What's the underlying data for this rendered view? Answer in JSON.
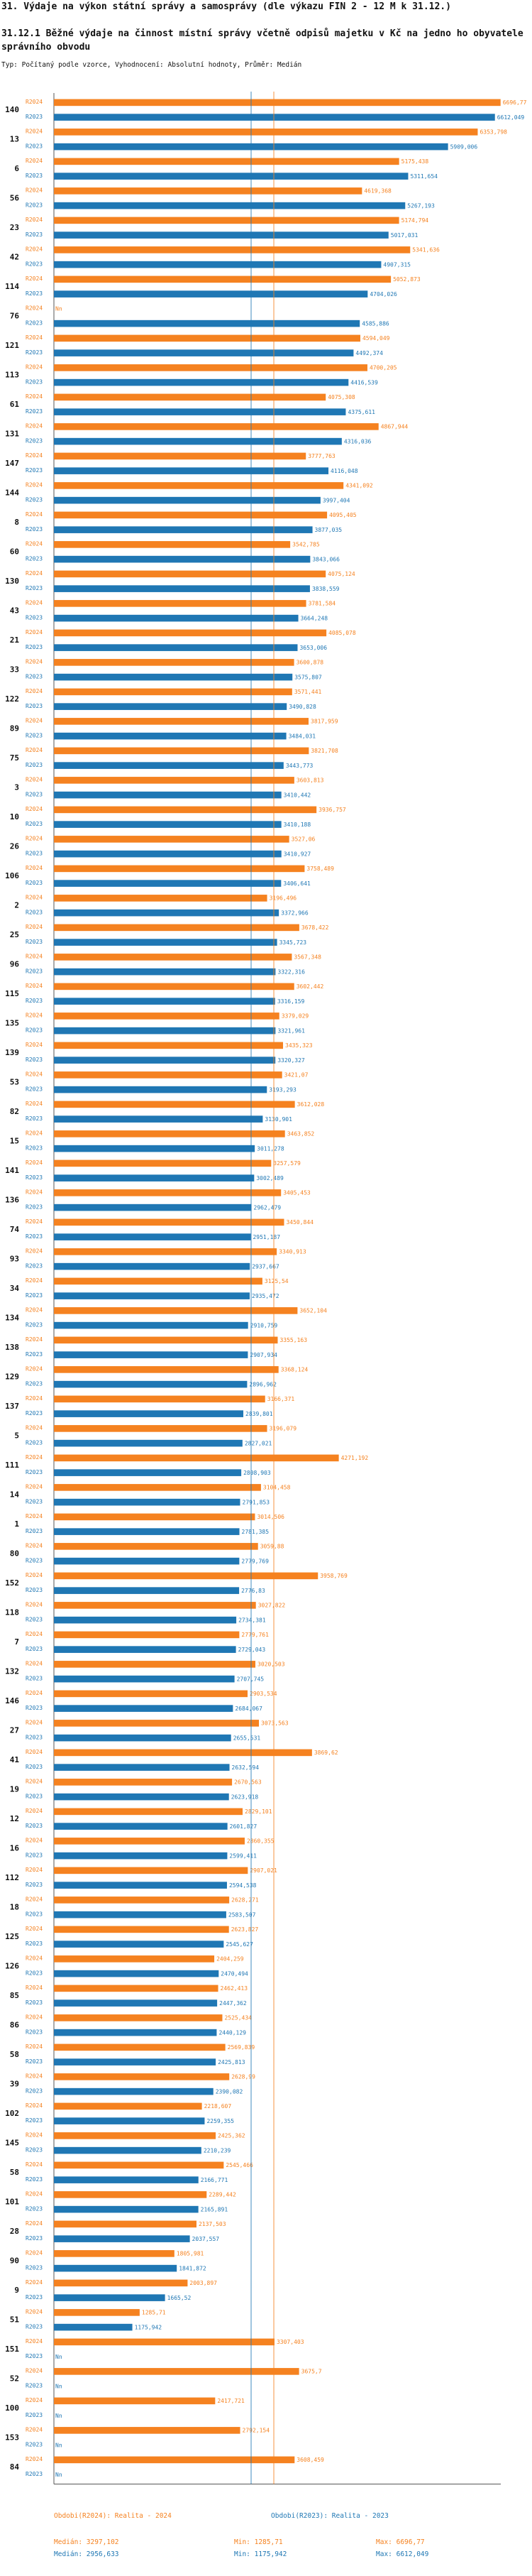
{
  "header": {
    "title": "31. Výdaje na výkon státní správy a samosprávy (dle výkazu FIN 2 - 12 M k 31.12.)",
    "subtitle": "31.12.1 Běžné výdaje na činnost místní správy včetně odpisů majetku v Kč na jedno ho obyvatele správního obvodu",
    "meta": "Typ: Počítaný podle vzorce, Vyhodnocení: Absolutní hodnoty, Průměr: Medián"
  },
  "chart_data": {
    "type": "bar",
    "orientation": "horizontal",
    "series": [
      {
        "name": "R2024",
        "color": "#f58220",
        "legend": "Obdobi(R2024): Realita - 2024"
      },
      {
        "name": "R2023",
        "color": "#1f77b4",
        "legend": "Obdobi(R2023): Realita - 2023"
      }
    ],
    "categories": [
      {
        "id": "140",
        "r2024": 6696.77,
        "r2024_label": "6696,77",
        "r2023": 6612.049,
        "r2023_label": "6612,049"
      },
      {
        "id": "13",
        "r2024": 6353.798,
        "r2024_label": "6353,798",
        "r2023": 5909.006,
        "r2023_label": "5909,006"
      },
      {
        "id": "6",
        "r2024": 5175.438,
        "r2024_label": "5175,438",
        "r2023": 5311.654,
        "r2023_label": "5311,654"
      },
      {
        "id": "56",
        "r2024": 4619.368,
        "r2024_label": "4619,368",
        "r2023": 5267.193,
        "r2023_label": "5267,193"
      },
      {
        "id": "23",
        "r2024": 5174.794,
        "r2024_label": "5174,794",
        "r2023": 5017.031,
        "r2023_label": "5017,031"
      },
      {
        "id": "42",
        "r2024": 5341.636,
        "r2024_label": "5341,636",
        "r2023": 4907.315,
        "r2023_label": "4907,315"
      },
      {
        "id": "114",
        "r2024": 5052.873,
        "r2024_label": "5052,873",
        "r2023": 4704.026,
        "r2023_label": "4704,026"
      },
      {
        "id": "76",
        "r2024": null,
        "r2024_label": "Nn",
        "r2023": 4585.886,
        "r2023_label": "4585,886"
      },
      {
        "id": "121",
        "r2024": 4594.049,
        "r2024_label": "4594,049",
        "r2023": 4492.374,
        "r2023_label": "4492,374"
      },
      {
        "id": "113",
        "r2024": 4700.205,
        "r2024_label": "4700,205",
        "r2023": 4416.539,
        "r2023_label": "4416,539"
      },
      {
        "id": "61",
        "r2024": 4075.308,
        "r2024_label": "4075,308",
        "r2023": 4375.611,
        "r2023_label": "4375,611"
      },
      {
        "id": "131",
        "r2024": 4867.944,
        "r2024_label": "4867,944",
        "r2023": 4316.036,
        "r2023_label": "4316,036"
      },
      {
        "id": "147",
        "r2024": 3777.763,
        "r2024_label": "3777,763",
        "r2023": 4116.048,
        "r2023_label": "4116,048"
      },
      {
        "id": "144",
        "r2024": 4341.092,
        "r2024_label": "4341,092",
        "r2023": 3997.404,
        "r2023_label": "3997,404"
      },
      {
        "id": "8",
        "r2024": 4095.405,
        "r2024_label": "4095,405",
        "r2023": 3877.035,
        "r2023_label": "3877,035"
      },
      {
        "id": "60",
        "r2024": 3542.785,
        "r2024_label": "3542,785",
        "r2023": 3843.066,
        "r2023_label": "3843,066"
      },
      {
        "id": "130",
        "r2024": 4075.124,
        "r2024_label": "4075,124",
        "r2023": 3838.559,
        "r2023_label": "3838,559"
      },
      {
        "id": "43",
        "r2024": 3781.584,
        "r2024_label": "3781,584",
        "r2023": 3664.248,
        "r2023_label": "3664,248"
      },
      {
        "id": "21",
        "r2024": 4085.078,
        "r2024_label": "4085,078",
        "r2023": 3653.006,
        "r2023_label": "3653,006"
      },
      {
        "id": "33",
        "r2024": 3600.878,
        "r2024_label": "3600,878",
        "r2023": 3575.807,
        "r2023_label": "3575,807"
      },
      {
        "id": "122",
        "r2024": 3571.441,
        "r2024_label": "3571,441",
        "r2023": 3490.828,
        "r2023_label": "3490,828"
      },
      {
        "id": "89",
        "r2024": 3817.959,
        "r2024_label": "3817,959",
        "r2023": 3484.031,
        "r2023_label": "3484,031"
      },
      {
        "id": "75",
        "r2024": 3821.708,
        "r2024_label": "3821,708",
        "r2023": 3443.773,
        "r2023_label": "3443,773"
      },
      {
        "id": "3",
        "r2024": 3603.813,
        "r2024_label": "3603,813",
        "r2023": 3410.442,
        "r2023_label": "3410,442"
      },
      {
        "id": "10",
        "r2024": 3936.757,
        "r2024_label": "3936,757",
        "r2023": 3410.188,
        "r2023_label": "3410,188"
      },
      {
        "id": "26",
        "r2024": 3527.06,
        "r2024_label": "3527,06",
        "r2023": 3410.927,
        "r2023_label": "3410,927"
      },
      {
        "id": "106",
        "r2024": 3758.489,
        "r2024_label": "3758,489",
        "r2023": 3406.641,
        "r2023_label": "3406,641"
      },
      {
        "id": "2",
        "r2024": 3196.496,
        "r2024_label": "3196,496",
        "r2023": 3372.966,
        "r2023_label": "3372,966"
      },
      {
        "id": "25",
        "r2024": 3678.422,
        "r2024_label": "3678,422",
        "r2023": 3345.723,
        "r2023_label": "3345,723"
      },
      {
        "id": "96",
        "r2024": 3567.348,
        "r2024_label": "3567,348",
        "r2023": 3322.316,
        "r2023_label": "3322,316"
      },
      {
        "id": "115",
        "r2024": 3602.442,
        "r2024_label": "3602,442",
        "r2023": 3316.159,
        "r2023_label": "3316,159"
      },
      {
        "id": "135",
        "r2024": 3379.029,
        "r2024_label": "3379,029",
        "r2023": 3321.961,
        "r2023_label": "3321,961"
      },
      {
        "id": "139",
        "r2024": 3435.323,
        "r2024_label": "3435,323",
        "r2023": 3320.327,
        "r2023_label": "3320,327"
      },
      {
        "id": "53",
        "r2024": 3421.07,
        "r2024_label": "3421,07",
        "r2023": 3193.293,
        "r2023_label": "3193,293"
      },
      {
        "id": "82",
        "r2024": 3612.028,
        "r2024_label": "3612,028",
        "r2023": 3130.901,
        "r2023_label": "3130,901"
      },
      {
        "id": "15",
        "r2024": 3463.852,
        "r2024_label": "3463,852",
        "r2023": 3011.278,
        "r2023_label": "3011,278"
      },
      {
        "id": "141",
        "r2024": 3257.579,
        "r2024_label": "3257,579",
        "r2023": 3002.489,
        "r2023_label": "3002,489"
      },
      {
        "id": "136",
        "r2024": 3405.453,
        "r2024_label": "3405,453",
        "r2023": 2962.479,
        "r2023_label": "2962,479"
      },
      {
        "id": "74",
        "r2024": 3450.844,
        "r2024_label": "3450,844",
        "r2023": 2951.187,
        "r2023_label": "2951,187"
      },
      {
        "id": "93",
        "r2024": 3340.913,
        "r2024_label": "3340,913",
        "r2023": 2937.667,
        "r2023_label": "2937,667"
      },
      {
        "id": "34",
        "r2024": 3125.54,
        "r2024_label": "3125,54",
        "r2023": 2935.472,
        "r2023_label": "2935,472"
      },
      {
        "id": "134",
        "r2024": 3652.104,
        "r2024_label": "3652,104",
        "r2023": 2910.759,
        "r2023_label": "2910,759"
      },
      {
        "id": "138",
        "r2024": 3355.163,
        "r2024_label": "3355,163",
        "r2023": 2907.934,
        "r2023_label": "2907,934"
      },
      {
        "id": "129",
        "r2024": 3368.124,
        "r2024_label": "3368,124",
        "r2023": 2896.962,
        "r2023_label": "2896,962"
      },
      {
        "id": "137",
        "r2024": 3166.371,
        "r2024_label": "3166,371",
        "r2023": 2839.801,
        "r2023_label": "2839,801"
      },
      {
        "id": "5",
        "r2024": 3196.079,
        "r2024_label": "3196,079",
        "r2023": 2827.021,
        "r2023_label": "2827,021"
      },
      {
        "id": "111",
        "r2024": 4271.192,
        "r2024_label": "4271,192",
        "r2023": 2808.903,
        "r2023_label": "2808,903"
      },
      {
        "id": "14",
        "r2024": 3104.458,
        "r2024_label": "3104,458",
        "r2023": 2791.853,
        "r2023_label": "2791,853"
      },
      {
        "id": "1",
        "r2024": 3014.506,
        "r2024_label": "3014,506",
        "r2023": 2781.385,
        "r2023_label": "2781,385"
      },
      {
        "id": "80",
        "r2024": 3059.88,
        "r2024_label": "3059,88",
        "r2023": 2779.769,
        "r2023_label": "2779,769"
      },
      {
        "id": "152",
        "r2024": 3958.769,
        "r2024_label": "3958,769",
        "r2023": 2776.83,
        "r2023_label": "2776,83"
      },
      {
        "id": "118",
        "r2024": 3027.822,
        "r2024_label": "3027,822",
        "r2023": 2734.381,
        "r2023_label": "2734,381"
      },
      {
        "id": "7",
        "r2024": 2779.761,
        "r2024_label": "2779,761",
        "r2023": 2729.043,
        "r2023_label": "2729,043"
      },
      {
        "id": "132",
        "r2024": 3020.503,
        "r2024_label": "3020,503",
        "r2023": 2707.745,
        "r2023_label": "2707,745"
      },
      {
        "id": "146",
        "r2024": 2903.534,
        "r2024_label": "2903,534",
        "r2023": 2684.067,
        "r2023_label": "2684,067"
      },
      {
        "id": "27",
        "r2024": 3073.563,
        "r2024_label": "3073,563",
        "r2023": 2655.531,
        "r2023_label": "2655,531"
      },
      {
        "id": "41",
        "r2024": 3869.62,
        "r2024_label": "3869,62",
        "r2023": 2632.594,
        "r2023_label": "2632,594"
      },
      {
        "id": "19",
        "r2024": 2670.563,
        "r2024_label": "2670,563",
        "r2023": 2623.918,
        "r2023_label": "2623,918"
      },
      {
        "id": "12",
        "r2024": 2829.101,
        "r2024_label": "2829,101",
        "r2023": 2601.827,
        "r2023_label": "2601,827"
      },
      {
        "id": "16",
        "r2024": 2860.355,
        "r2024_label": "2860,355",
        "r2023": 2599.411,
        "r2023_label": "2599,411"
      },
      {
        "id": "112",
        "r2024": 2907.021,
        "r2024_label": "2907,021",
        "r2023": 2594.538,
        "r2023_label": "2594,538"
      },
      {
        "id": "18",
        "r2024": 2628.271,
        "r2024_label": "2628,271",
        "r2023": 2583.507,
        "r2023_label": "2583,507"
      },
      {
        "id": "125",
        "r2024": 2623.827,
        "r2024_label": "2623,827",
        "r2023": 2545.627,
        "r2023_label": "2545,627"
      },
      {
        "id": "126",
        "r2024": 2404.259,
        "r2024_label": "2404,259",
        "r2023": 2470.494,
        "r2023_label": "2470,494"
      },
      {
        "id": "85",
        "r2024": 2462.413,
        "r2024_label": "2462,413",
        "r2023": 2447.362,
        "r2023_label": "2447,362"
      },
      {
        "id": "86",
        "r2024": 2525.434,
        "r2024_label": "2525,434",
        "r2023": 2440.129,
        "r2023_label": "2440,129"
      },
      {
        "id": "58",
        "r2024": 2569.839,
        "r2024_label": "2569,839",
        "r2023": 2425.813,
        "r2023_label": "2425,813"
      },
      {
        "id": "39",
        "r2024": 2628.99,
        "r2024_label": "2628,99",
        "r2023": 2390.082,
        "r2023_label": "2390,082"
      },
      {
        "id": "102",
        "r2024": 2218.607,
        "r2024_label": "2218,607",
        "r2023": 2259.355,
        "r2023_label": "2259,355"
      },
      {
        "id": "145",
        "r2024": 2425.362,
        "r2024_label": "2425,362",
        "r2023": 2210.239,
        "r2023_label": "2210,239"
      },
      {
        "id": "58",
        "r2024": 2545.466,
        "r2024_label": "2545,466",
        "r2023": 2166.771,
        "r2023_label": "2166,771"
      },
      {
        "id": "101",
        "r2024": 2289.442,
        "r2024_label": "2289,442",
        "r2023": 2165.891,
        "r2023_label": "2165,891"
      },
      {
        "id": "28",
        "r2024": 2137.503,
        "r2024_label": "2137,503",
        "r2023": 2037.557,
        "r2023_label": "2037,557"
      },
      {
        "id": "90",
        "r2024": 1805.981,
        "r2024_label": "1805,981",
        "r2023": 1841.872,
        "r2023_label": "1841,872"
      },
      {
        "id": "9",
        "r2024": 2003.897,
        "r2024_label": "2003,897",
        "r2023": 1665.52,
        "r2023_label": "1665,52"
      },
      {
        "id": "51",
        "r2024": 1285.71,
        "r2024_label": "1285,71",
        "r2023": 1175.942,
        "r2023_label": "1175,942"
      },
      {
        "id": "151",
        "r2024": 3307.403,
        "r2024_label": "3307,403",
        "r2023": null,
        "r2023_label": "Nn"
      },
      {
        "id": "52",
        "r2024": 3675.7,
        "r2024_label": "3675,7",
        "r2023": null,
        "r2023_label": "Nn"
      },
      {
        "id": "100",
        "r2024": 2417.721,
        "r2024_label": "2417,721",
        "r2023": null,
        "r2023_label": "Nn"
      },
      {
        "id": "153",
        "r2024": 2792.154,
        "r2024_label": "2792,154",
        "r2023": null,
        "r2023_label": "Nn"
      },
      {
        "id": "84",
        "r2024": 3608.459,
        "r2024_label": "3608,459",
        "r2023": null,
        "r2023_label": "Nn"
      }
    ],
    "xlim": [
      0,
      6700
    ],
    "reference_lines": [
      {
        "series": "R2024",
        "kind": "Medián",
        "value": 3297.102
      },
      {
        "series": "R2023",
        "kind": "Medián",
        "value": 2956.633
      }
    ],
    "legend_position": "bottom",
    "footer": {
      "r2024": {
        "median": "Medián: 3297,102",
        "min": "Min: 1285,71",
        "max": "Max: 6696,77"
      },
      "r2023": {
        "median": "Medián: 2956,633",
        "min": "Min: 1175,942",
        "max": "Max: 6612,049"
      }
    }
  }
}
